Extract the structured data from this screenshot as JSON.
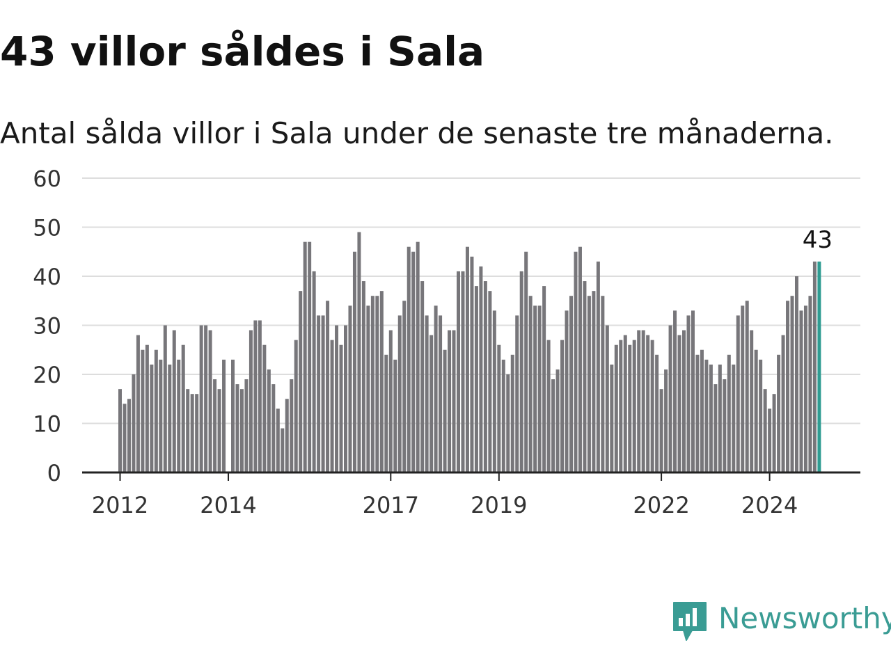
{
  "title": "43 villor såldes i Sala",
  "subtitle": "Antal sålda villor i Sala under de senaste tre månaderna.",
  "brand": {
    "name": "Newsworthy",
    "icon": "newsworthy-logo-icon",
    "color": "#3a9c94"
  },
  "chart_data": {
    "type": "bar",
    "ylim": [
      0,
      60
    ],
    "yticks": [
      0,
      10,
      20,
      30,
      40,
      50,
      60
    ],
    "xticks": [
      "2012",
      "2014",
      "2017",
      "2019",
      "2022",
      "2024"
    ],
    "grid": true,
    "bar_color": "#77767a",
    "highlight_color": "#2f9c92",
    "highlight_label": "43",
    "series": [
      {
        "values": [
          17,
          14,
          15,
          20,
          28,
          25,
          26,
          22,
          25,
          23,
          30,
          22,
          29,
          23,
          26,
          17,
          16,
          16,
          30,
          30,
          29,
          19,
          17,
          23,
          0,
          23,
          18,
          17,
          19,
          29,
          31,
          31,
          26,
          21,
          18,
          13,
          9,
          15,
          19,
          27,
          37,
          47,
          47,
          41,
          32,
          32,
          35,
          27,
          30,
          26,
          30,
          34,
          45,
          49,
          39,
          34,
          36,
          36,
          37,
          24,
          29,
          23,
          32,
          35,
          46,
          45,
          47,
          39,
          32,
          28,
          34,
          32,
          25,
          29,
          29,
          41,
          41,
          46,
          44,
          38,
          42,
          39,
          37,
          33,
          26,
          23,
          20,
          24,
          32,
          41,
          45,
          36,
          34,
          34,
          38,
          27,
          19,
          21,
          27,
          33,
          36,
          45,
          46,
          39,
          36,
          37,
          43,
          36,
          30,
          22,
          26,
          27,
          28,
          26,
          27,
          29,
          29,
          28,
          27,
          24,
          17,
          21,
          30,
          33,
          28,
          29,
          32,
          33,
          24,
          25,
          23,
          22,
          18,
          22,
          19,
          24,
          22,
          32,
          34,
          35,
          29,
          25,
          23,
          17,
          13,
          16,
          24,
          28,
          35,
          36,
          40,
          33,
          34,
          36,
          43,
          43
        ]
      }
    ]
  }
}
